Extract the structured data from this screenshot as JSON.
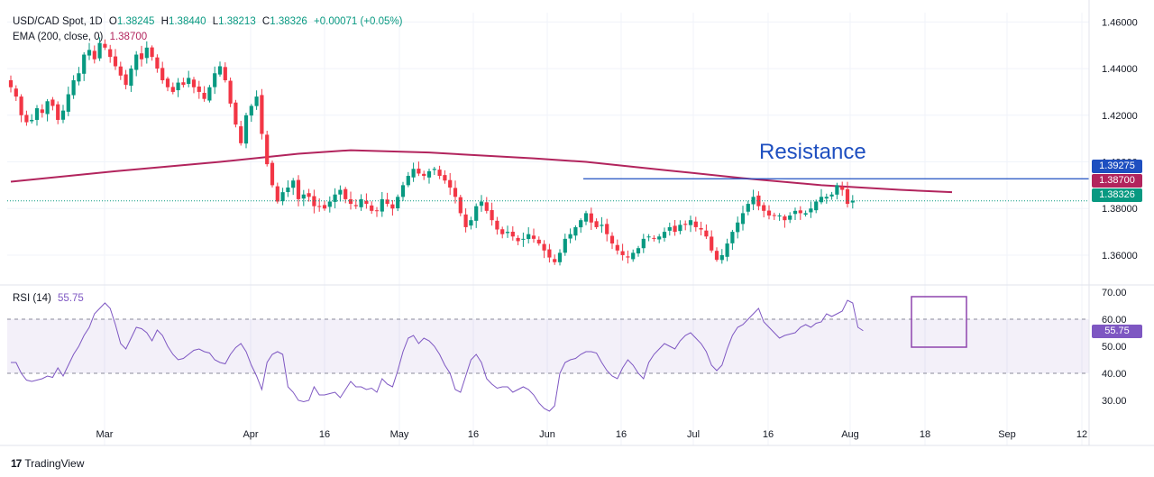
{
  "header": {
    "symbol": "USD/CAD Spot, 1D",
    "open_label": "O",
    "open": "1.38245",
    "high_label": "H",
    "high": "1.38440",
    "low_label": "L",
    "low": "1.38213",
    "close_label": "C",
    "close": "1.38326",
    "change": "+0.00071 (+0.05%)",
    "ema_label": "EMA (200, close, 0)",
    "ema_value": "1.38700"
  },
  "rsi_header": {
    "label": "RSI (14)",
    "value": "55.75"
  },
  "badges": {
    "resistance": "1.39275",
    "ema": "1.38700",
    "last": "1.38326",
    "rsi": "55.75"
  },
  "annotation": "Resistance",
  "branding": {
    "logo": "TradingView",
    "logo_mark": "17"
  },
  "colors": {
    "up": "#089981",
    "down": "#f23645",
    "ema": "#b2245d",
    "rsi": "#7e57c2",
    "resistance": "#1e4fc0"
  },
  "chart_data": [
    {
      "type": "candlestick",
      "title": "USD/CAD Spot, 1D",
      "x_ticks": [
        "Mar",
        "16",
        "Apr",
        "16",
        "May",
        "16",
        "Jun",
        "16",
        "Jul",
        "16",
        "Aug",
        "18",
        "Sep",
        "12"
      ],
      "y_ticks": [
        "1.46000",
        "1.44000",
        "1.42000",
        "1.40000",
        "1.38000",
        "1.36000"
      ],
      "ylim": [
        1.348,
        1.464
      ],
      "resistance_level": 1.39275,
      "ema": {
        "name": "EMA (200, close, 0)",
        "points": [
          [
            0,
            1.3915
          ],
          [
            20,
            1.396
          ],
          [
            40,
            1.4
          ],
          [
            55,
            1.4035
          ],
          [
            65,
            1.405
          ],
          [
            80,
            1.404
          ],
          [
            100,
            1.4015
          ],
          [
            110,
            1.4
          ],
          [
            125,
            1.3965
          ],
          [
            140,
            1.393
          ],
          [
            155,
            1.39
          ],
          [
            170,
            1.388
          ],
          [
            180,
            1.387
          ]
        ]
      },
      "closes": [
        1.432,
        1.428,
        1.42,
        1.417,
        1.418,
        1.423,
        1.421,
        1.426,
        1.424,
        1.418,
        1.422,
        1.429,
        1.435,
        1.438,
        1.446,
        1.448,
        1.444,
        1.451,
        1.449,
        1.445,
        1.441,
        1.437,
        1.433,
        1.44,
        1.446,
        1.444,
        1.449,
        1.445,
        1.44,
        1.435,
        1.432,
        1.43,
        1.434,
        1.433,
        1.436,
        1.432,
        1.43,
        1.427,
        1.432,
        1.438,
        1.441,
        1.435,
        1.425,
        1.416,
        1.408,
        1.42,
        1.424,
        1.428,
        1.412,
        1.399,
        1.39,
        1.383,
        1.387,
        1.389,
        1.392,
        1.384,
        1.386,
        1.385,
        1.381,
        1.381,
        1.38,
        1.383,
        1.386,
        1.388,
        1.384,
        1.382,
        1.381,
        1.384,
        1.382,
        1.379,
        1.379,
        1.384,
        1.382,
        1.38,
        1.385,
        1.39,
        1.394,
        1.397,
        1.395,
        1.394,
        1.396,
        1.397,
        1.394,
        1.392,
        1.389,
        1.385,
        1.378,
        1.372,
        1.375,
        1.381,
        1.383,
        1.379,
        1.375,
        1.371,
        1.369,
        1.37,
        1.368,
        1.366,
        1.367,
        1.369,
        1.367,
        1.365,
        1.362,
        1.359,
        1.357,
        1.361,
        1.367,
        1.369,
        1.372,
        1.375,
        1.378,
        1.374,
        1.372,
        1.373,
        1.369,
        1.365,
        1.362,
        1.36,
        1.359,
        1.361,
        1.363,
        1.367,
        1.368,
        1.367,
        1.368,
        1.37,
        1.372,
        1.37,
        1.373,
        1.373,
        1.375,
        1.372,
        1.371,
        1.368,
        1.362,
        1.358,
        1.36,
        1.365,
        1.37,
        1.374,
        1.378,
        1.382,
        1.385,
        1.381,
        1.379,
        1.377,
        1.377,
        1.377,
        1.375,
        1.377,
        1.379,
        1.378,
        1.378,
        1.38,
        1.383,
        1.385,
        1.385,
        1.386,
        1.39,
        1.388,
        1.382,
        1.3833
      ],
      "rsi": {
        "name": "RSI (14)",
        "ylim": [
          24,
          72
        ],
        "y_ticks": [
          "70.00",
          "60.00",
          "50.00",
          "40.00",
          "30.00"
        ],
        "band": [
          40,
          60
        ],
        "last": 55.75,
        "values": [
          44.0,
          44.0,
          40.0,
          37.5,
          37.0,
          37.5,
          38.0,
          39.0,
          38.5,
          42.0,
          39.0,
          43.0,
          47.0,
          50.0,
          54.0,
          57.0,
          62.0,
          64.0,
          66.0,
          64.0,
          58.0,
          51.0,
          49.0,
          53.0,
          57.0,
          56.5,
          55.0,
          52.0,
          56.0,
          54.0,
          50.0,
          47.0,
          45.0,
          45.5,
          47.0,
          48.5,
          49.0,
          48.0,
          47.5,
          45.0,
          44.0,
          43.5,
          47.0,
          49.5,
          51.0,
          48.0,
          43.0,
          39.0,
          34.0,
          44.0,
          47.0,
          48.0,
          47.0,
          35.0,
          33.0,
          30.0,
          29.5,
          30.0,
          35.0,
          32.0,
          32.0,
          32.5,
          33.0,
          31.0,
          34.0,
          37.0,
          35.0,
          35.0,
          34.0,
          34.5,
          33.0,
          38.0,
          36.0,
          35.0,
          41.0,
          48.0,
          53.0,
          54.0,
          51.0,
          53.0,
          52.0,
          50.0,
          47.0,
          43.0,
          40.0,
          34.0,
          33.0,
          39.0,
          45.0,
          47.0,
          44.0,
          38.0,
          36.0,
          34.5,
          35.0,
          35.0,
          33.0,
          34.0,
          35.0,
          34.0,
          32.0,
          29.0,
          27.0,
          26.0,
          28.0,
          40.0,
          44.0,
          45.0,
          45.5,
          47.0,
          48.0,
          48.0,
          47.5,
          44.0,
          41.0,
          39.0,
          38.0,
          42.0,
          45.0,
          43.0,
          40.0,
          38.0,
          44.0,
          47.0,
          49.0,
          51.0,
          50.0,
          49.0,
          52.0,
          54.0,
          55.0,
          53.0,
          51.0,
          48.0,
          43.0,
          41.0,
          43.0,
          49.0,
          54.0,
          57.0,
          58.0,
          60.0,
          62.0,
          64.0,
          59.0,
          57.0,
          55.0,
          53.0,
          54.0,
          54.5,
          55.0,
          57.0,
          58.0,
          57.0,
          58.5,
          59.0,
          62.0,
          61.0,
          62.0,
          63.0,
          67.0,
          66.0,
          57.0,
          55.75
        ]
      }
    }
  ]
}
